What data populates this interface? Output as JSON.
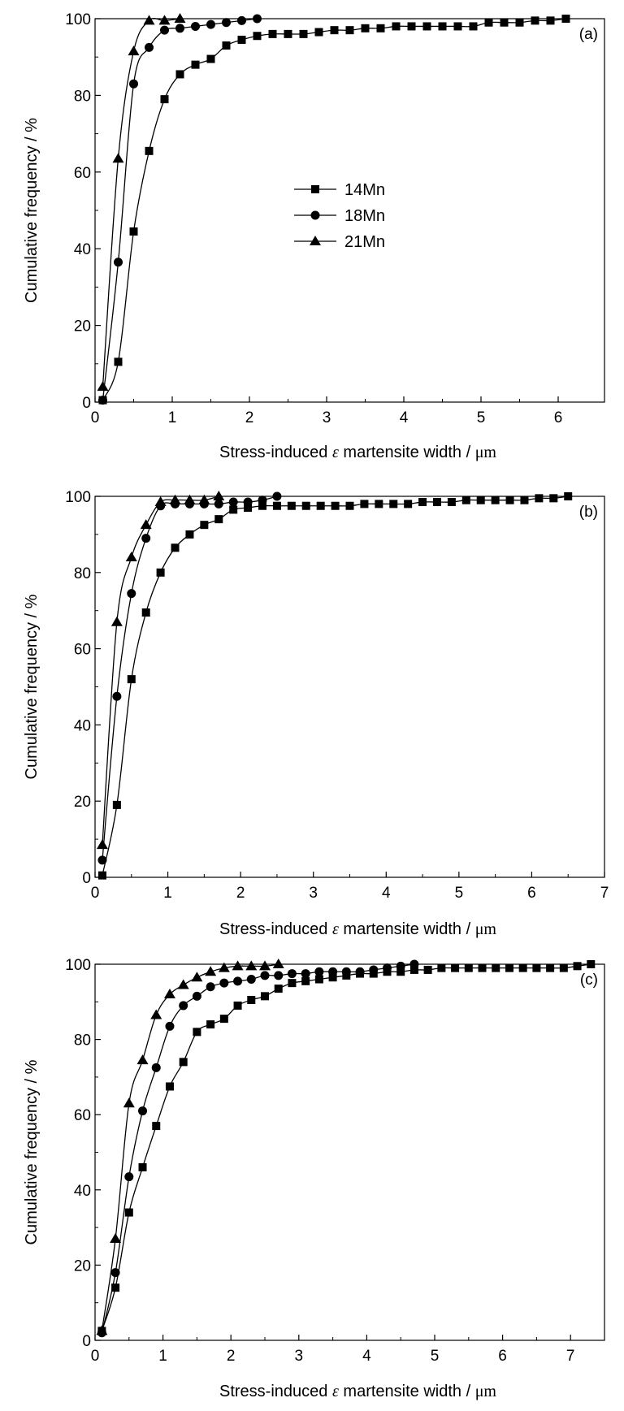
{
  "chart_data": [
    {
      "type": "line",
      "panel_label": "(a)",
      "xlabel": {
        "prefix": "Stress-induced ",
        "symbol": "ε",
        "middle": " martensite width / ",
        "unit": "μm"
      },
      "ylabel": "Cumulative frequency / %",
      "xlim": [
        0,
        6.6
      ],
      "ylim": [
        0,
        100
      ],
      "xticks": [
        0,
        1,
        2,
        3,
        4,
        5,
        6
      ],
      "yticks": [
        0,
        20,
        40,
        60,
        80,
        100
      ],
      "legend": {
        "position": "center",
        "entries": [
          "14Mn",
          "18Mn",
          "21Mn"
        ]
      },
      "series": [
        {
          "name": "14Mn",
          "marker": "square",
          "x": [
            0.1,
            0.3,
            0.5,
            0.7,
            0.9,
            1.1,
            1.3,
            1.5,
            1.7,
            1.9,
            2.1,
            2.3,
            2.5,
            2.7,
            2.9,
            3.1,
            3.3,
            3.5,
            3.7,
            3.9,
            4.1,
            4.3,
            4.5,
            4.7,
            4.9,
            5.1,
            5.3,
            5.5,
            5.7,
            5.9,
            6.1
          ],
          "y": [
            0.5,
            10.5,
            44.5,
            65.5,
            79,
            85.5,
            88,
            89.5,
            93,
            94.5,
            95.5,
            96,
            96,
            96,
            96.5,
            97,
            97,
            97.5,
            97.5,
            98,
            98,
            98,
            98,
            98,
            98,
            99,
            99,
            99,
            99.5,
            99.5,
            100
          ]
        },
        {
          "name": "18Mn",
          "marker": "circle",
          "x": [
            0.1,
            0.3,
            0.5,
            0.7,
            0.9,
            1.1,
            1.3,
            1.5,
            1.7,
            1.9,
            2.1
          ],
          "y": [
            0.5,
            36.5,
            83,
            92.5,
            97,
            97.5,
            98,
            98.5,
            99,
            99.5,
            100
          ]
        },
        {
          "name": "21Mn",
          "marker": "triangle",
          "x": [
            0.1,
            0.3,
            0.5,
            0.7,
            0.9,
            1.1
          ],
          "y": [
            4,
            63.5,
            91.5,
            99.5,
            99.5,
            100
          ]
        }
      ]
    },
    {
      "type": "line",
      "panel_label": "(b)",
      "xlabel": {
        "prefix": "Stress-induced ",
        "symbol": "ε",
        "middle": " martensite width / ",
        "unit": "μm"
      },
      "ylabel": "Cumulative frequency / %",
      "xlim": [
        0,
        7
      ],
      "ylim": [
        0,
        100
      ],
      "xticks": [
        0,
        1,
        2,
        3,
        4,
        5,
        6,
        7
      ],
      "yticks": [
        0,
        20,
        40,
        60,
        80,
        100
      ],
      "series": [
        {
          "name": "14Mn",
          "marker": "square",
          "x": [
            0.1,
            0.3,
            0.5,
            0.7,
            0.9,
            1.1,
            1.3,
            1.5,
            1.7,
            1.9,
            2.1,
            2.3,
            2.5,
            2.7,
            2.9,
            3.1,
            3.3,
            3.5,
            3.7,
            3.9,
            4.1,
            4.3,
            4.5,
            4.7,
            4.9,
            5.1,
            5.3,
            5.5,
            5.7,
            5.9,
            6.1,
            6.3,
            6.5
          ],
          "y": [
            0.5,
            19,
            52,
            69.5,
            80,
            86.5,
            90,
            92.5,
            94,
            96.5,
            97,
            97.5,
            97.5,
            97.5,
            97.5,
            97.5,
            97.5,
            97.5,
            98,
            98,
            98,
            98,
            98.5,
            98.5,
            98.5,
            99,
            99,
            99,
            99,
            99,
            99.5,
            99.5,
            100
          ]
        },
        {
          "name": "18Mn",
          "marker": "circle",
          "x": [
            0.1,
            0.3,
            0.5,
            0.7,
            0.9,
            1.1,
            1.3,
            1.5,
            1.7,
            1.9,
            2.1,
            2.3,
            2.5
          ],
          "y": [
            4.5,
            47.5,
            74.5,
            89,
            97.5,
            98,
            98,
            98,
            98,
            98.5,
            98.5,
            99,
            100
          ]
        },
        {
          "name": "21Mn",
          "marker": "triangle",
          "x": [
            0.1,
            0.3,
            0.5,
            0.7,
            0.9,
            1.1,
            1.3,
            1.5,
            1.7
          ],
          "y": [
            8.5,
            67,
            84,
            92.5,
            98.5,
            99,
            99,
            99,
            100
          ]
        }
      ]
    },
    {
      "type": "line",
      "panel_label": "(c)",
      "xlabel": {
        "prefix": "Stress-induced ",
        "symbol": "ε",
        "middle": " martensite width / ",
        "unit": "μm"
      },
      "ylabel": "Cumulative frequency / %",
      "xlim": [
        0,
        7.5
      ],
      "ylim": [
        0,
        100
      ],
      "xticks": [
        0,
        1,
        2,
        3,
        4,
        5,
        6,
        7
      ],
      "yticks": [
        0,
        20,
        40,
        60,
        80,
        100
      ],
      "series": [
        {
          "name": "14Mn",
          "marker": "square",
          "x": [
            0.1,
            0.3,
            0.5,
            0.7,
            0.9,
            1.1,
            1.3,
            1.5,
            1.7,
            1.9,
            2.1,
            2.3,
            2.5,
            2.7,
            2.9,
            3.1,
            3.3,
            3.5,
            3.7,
            3.9,
            4.1,
            4.3,
            4.5,
            4.7,
            4.9,
            5.1,
            5.3,
            5.5,
            5.7,
            5.9,
            6.1,
            6.3,
            6.5,
            6.7,
            6.9,
            7.1,
            7.3
          ],
          "y": [
            2.5,
            14,
            34,
            46,
            57,
            67.5,
            74,
            82,
            84,
            85.5,
            89,
            90.5,
            91.5,
            93.5,
            95,
            95.5,
            96,
            96.5,
            97,
            97.5,
            97.5,
            98,
            98,
            98.5,
            98.5,
            99,
            99,
            99,
            99,
            99,
            99,
            99,
            99,
            99,
            99,
            99.5,
            100
          ]
        },
        {
          "name": "18Mn",
          "marker": "circle",
          "x": [
            0.1,
            0.3,
            0.5,
            0.7,
            0.9,
            1.1,
            1.3,
            1.5,
            1.7,
            1.9,
            2.1,
            2.3,
            2.5,
            2.7,
            2.9,
            3.1,
            3.3,
            3.5,
            3.7,
            3.9,
            4.1,
            4.3,
            4.5,
            4.7
          ],
          "y": [
            2,
            18,
            43.5,
            61,
            72.5,
            83.5,
            89,
            91.5,
            94,
            95,
            95.5,
            96,
            97,
            97,
            97.5,
            97.5,
            98,
            98,
            98,
            98,
            98.5,
            99,
            99.5,
            100
          ]
        },
        {
          "name": "21Mn",
          "marker": "triangle",
          "x": [
            0.1,
            0.3,
            0.5,
            0.7,
            0.9,
            1.1,
            1.3,
            1.5,
            1.7,
            1.9,
            2.1,
            2.3,
            2.5,
            2.7
          ],
          "y": [
            2.5,
            27,
            63,
            74.5,
            86.5,
            92,
            94.5,
            96.5,
            98,
            99,
            99.5,
            99.5,
            99.5,
            100
          ]
        }
      ]
    }
  ]
}
